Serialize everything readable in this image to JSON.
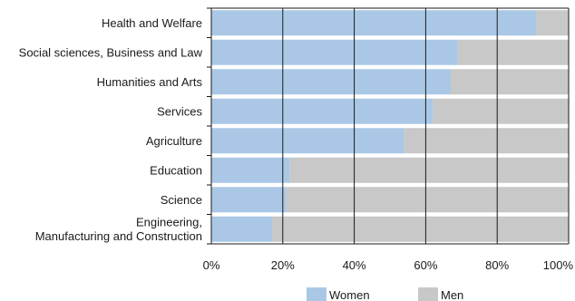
{
  "chart_data": {
    "type": "bar",
    "orientation": "horizontal",
    "stacked": "percent",
    "categories": [
      "Health and Welfare",
      "Social sciences, Business and Law",
      "Humanities and Arts",
      "Services",
      "Agriculture",
      "Education",
      "Science",
      "Engineering, Manufacturing and Construction"
    ],
    "series": [
      {
        "name": "Women",
        "color": "#aac8e6",
        "values": [
          91,
          69,
          67,
          62,
          54,
          22,
          21,
          17
        ]
      },
      {
        "name": "Men",
        "color": "#c8c8c8",
        "values": [
          9,
          31,
          33,
          38,
          46,
          78,
          79,
          83
        ]
      }
    ],
    "xlim": [
      0,
      100
    ],
    "xticks": [
      "0%",
      "20%",
      "40%",
      "60%",
      "80%",
      "100%"
    ],
    "grid": "vertical",
    "legend": "bottom",
    "title": "",
    "xlabel": "",
    "ylabel": ""
  }
}
